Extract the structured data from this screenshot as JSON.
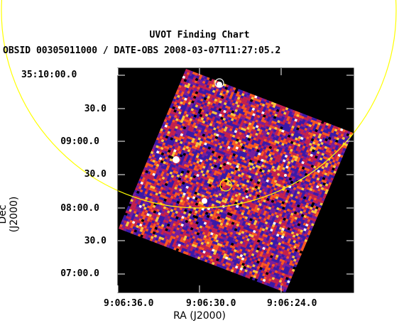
{
  "chart_data": {
    "type": "heatmap",
    "title": "UVOT Finding Chart",
    "subtitle": "OBSID 00305011000 / DATE-OBS 2008-03-07T11:27:05.2",
    "xlabel": "RA (J2000)",
    "ylabel": "Dec (J2000)",
    "x_ticks": [
      "9:06:36.0",
      "9:06:30.0",
      "9:06:24.0"
    ],
    "y_ticks": [
      "35:10:00.0",
      "30.0",
      "09:00.0",
      "30.0",
      "08:00.0",
      "30.0",
      "07:00.0"
    ],
    "colormap": [
      "#000000",
      "#3a1aa8",
      "#7a1f9a",
      "#c8214a",
      "#ff5a1e",
      "#ffc83a",
      "#ffffff"
    ],
    "overlay_color": "#ffff00",
    "background": "#000000"
  }
}
